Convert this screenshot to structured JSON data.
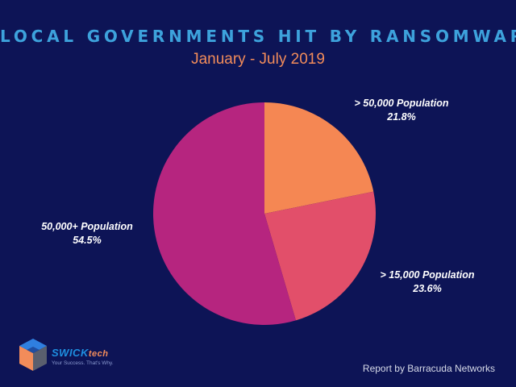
{
  "chart_data": {
    "type": "pie",
    "title": "LOCAL GOVERNMENTS HIT BY RANSOMWARE",
    "subtitle": "January - July 2019",
    "slices": [
      {
        "label": "> 50,000 Population",
        "value": 21.8,
        "value_label": "21.8%",
        "color": "#f58753"
      },
      {
        "label": "> 15,000 Population",
        "value": 23.6,
        "value_label": "23.6%",
        "color": "#e24f6a"
      },
      {
        "label": "50,000+ Population",
        "value": 54.5,
        "value_label": "54.5%",
        "color": "#b6257f"
      }
    ]
  },
  "logo": {
    "name_main": "SWICK",
    "name_sub": "tech",
    "tagline": "Your Success. That's Why."
  },
  "footer": {
    "credit": "Report by Barracuda Networks"
  },
  "colors": {
    "background": "#0d1456",
    "title": "#3da2dc",
    "subtitle": "#f28c5a"
  }
}
